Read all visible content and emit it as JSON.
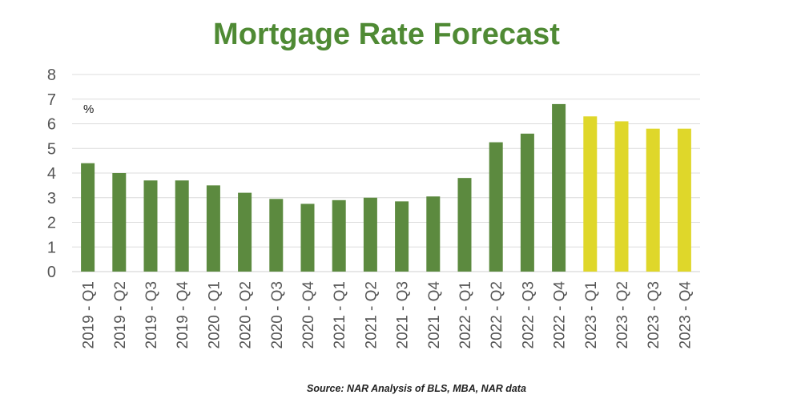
{
  "title": "Mortgage Rate Forecast",
  "source": "Source: NAR Analysis of BLS, MBA, NAR data",
  "colors": {
    "title": "#4f8a34",
    "actual": "#5c8a3f",
    "forecast": "#dfd72a",
    "grid": "#dcdcdc",
    "tick": "#555555"
  },
  "chart_data": {
    "type": "bar",
    "title": "Mortgage Rate Forecast",
    "unit_label": "%",
    "categories": [
      "2019 - Q1",
      "2019 - Q2",
      "2019 - Q3",
      "2019 - Q4",
      "2020 - Q1",
      "2020 - Q2",
      "2020 - Q3",
      "2020 - Q4",
      "2021 - Q1",
      "2021 - Q2",
      "2021 - Q3",
      "2021 - Q4",
      "2022 - Q1",
      "2022 - Q2",
      "2022 - Q3",
      "2022 - Q4",
      "2023 - Q1",
      "2023 - Q2",
      "2023 - Q3",
      "2023 - Q4"
    ],
    "values": [
      4.4,
      4.0,
      3.7,
      3.7,
      3.5,
      3.2,
      2.95,
      2.75,
      2.9,
      3.0,
      2.85,
      3.05,
      3.8,
      5.25,
      5.6,
      6.8,
      6.3,
      6.1,
      5.8,
      5.8
    ],
    "forecast_from_index": 16,
    "ylim": [
      0,
      8
    ],
    "yticks": [
      0,
      1,
      2,
      3,
      4,
      5,
      6,
      7,
      8
    ],
    "grid": true,
    "legend": "none",
    "xlabel": "",
    "ylabel": ""
  }
}
